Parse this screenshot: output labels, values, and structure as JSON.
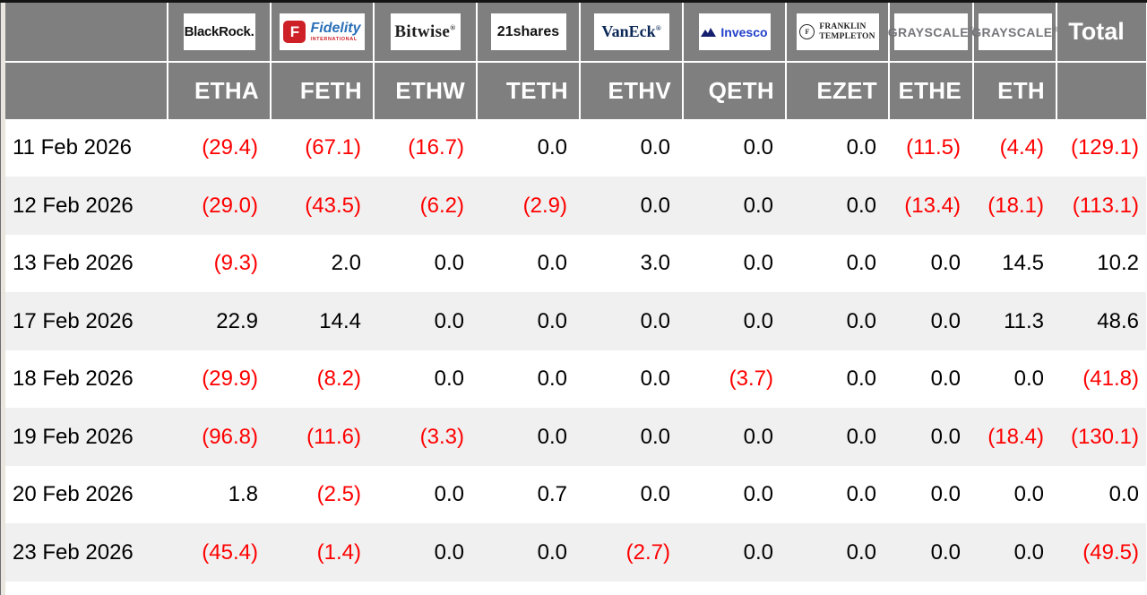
{
  "chart_data": {
    "type": "table",
    "columns": [
      "",
      "ETHA",
      "FETH",
      "ETHW",
      "TETH",
      "ETHV",
      "QETH",
      "EZET",
      "ETHE",
      "ETH",
      "Total"
    ],
    "providers": [
      {
        "brand": "BlackRock",
        "logo_style": "blackrock",
        "logo_text": "BlackRock.",
        "ticker": "ETHA"
      },
      {
        "brand": "Fidelity International",
        "logo_style": "fidelity",
        "logo_text": "Fidelity",
        "logo_subtext": "INTERNATIONAL",
        "ticker": "FETH"
      },
      {
        "brand": "Bitwise",
        "logo_style": "bitwise",
        "logo_text": "Bitwise",
        "ticker": "ETHW"
      },
      {
        "brand": "21shares",
        "logo_style": "shares21",
        "logo_text": "21shares",
        "ticker": "TETH"
      },
      {
        "brand": "VanEck",
        "logo_style": "vaneck",
        "logo_text": "VanEck",
        "ticker": "ETHV"
      },
      {
        "brand": "Invesco",
        "logo_style": "invesco",
        "logo_text": "Invesco",
        "ticker": "QETH"
      },
      {
        "brand": "Franklin Templeton",
        "logo_style": "franklin",
        "logo_text": "FRANKLIN",
        "logo_subtext": "TEMPLETON",
        "ticker": "EZET"
      },
      {
        "brand": "Grayscale",
        "logo_style": "grayscale",
        "logo_text": "GRAYSCALE",
        "ticker": "ETHE"
      },
      {
        "brand": "Grayscale",
        "logo_style": "grayscale",
        "logo_text": "GRAYSCALE",
        "ticker": "ETH"
      }
    ],
    "total_label": "Total",
    "negative_format": "parentheses, red",
    "rows": [
      {
        "date": "11 Feb 2026",
        "values": [
          "(29.4)",
          "(67.1)",
          "(16.7)",
          "0.0",
          "0.0",
          "0.0",
          "0.0",
          "(11.5)",
          "(4.4)"
        ],
        "total": "(129.1)"
      },
      {
        "date": "12 Feb 2026",
        "values": [
          "(29.0)",
          "(43.5)",
          "(6.2)",
          "(2.9)",
          "0.0",
          "0.0",
          "0.0",
          "(13.4)",
          "(18.1)"
        ],
        "total": "(113.1)"
      },
      {
        "date": "13 Feb 2026",
        "values": [
          "(9.3)",
          "2.0",
          "0.0",
          "0.0",
          "3.0",
          "0.0",
          "0.0",
          "0.0",
          "14.5"
        ],
        "total": "10.2"
      },
      {
        "date": "17 Feb 2026",
        "values": [
          "22.9",
          "14.4",
          "0.0",
          "0.0",
          "0.0",
          "0.0",
          "0.0",
          "0.0",
          "11.3"
        ],
        "total": "48.6"
      },
      {
        "date": "18 Feb 2026",
        "values": [
          "(29.9)",
          "(8.2)",
          "0.0",
          "0.0",
          "0.0",
          "(3.7)",
          "0.0",
          "0.0",
          "0.0"
        ],
        "total": "(41.8)"
      },
      {
        "date": "19 Feb 2026",
        "values": [
          "(96.8)",
          "(11.6)",
          "(3.3)",
          "0.0",
          "0.0",
          "0.0",
          "0.0",
          "0.0",
          "(18.4)"
        ],
        "total": "(130.1)"
      },
      {
        "date": "20 Feb 2026",
        "values": [
          "1.8",
          "(2.5)",
          "0.0",
          "0.7",
          "0.0",
          "0.0",
          "0.0",
          "0.0",
          "0.0"
        ],
        "total": "0.0"
      },
      {
        "date": "23 Feb 2026",
        "values": [
          "(45.4)",
          "(1.4)",
          "0.0",
          "0.0",
          "(2.7)",
          "0.0",
          "0.0",
          "0.0",
          "0.0"
        ],
        "total": "(49.5)"
      }
    ]
  },
  "colors": {
    "header_bg": "#7f7f7f",
    "header_text": "#ffffff",
    "row_bg": "#ffffff",
    "row_alt_bg": "#f0f0f0",
    "negative": "#ff0000",
    "value_text": "#000000",
    "left_strip": "#e9e6df",
    "top_border": "#141414"
  }
}
